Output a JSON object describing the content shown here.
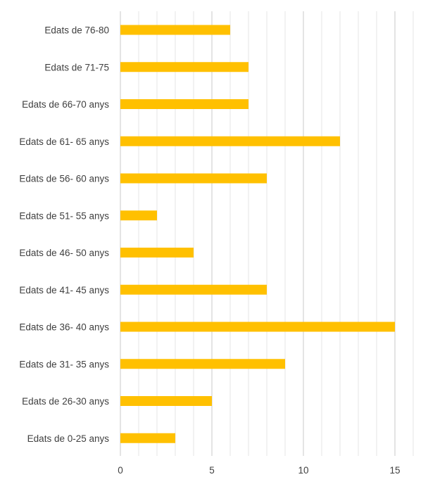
{
  "chart_data": {
    "type": "bar",
    "orientation": "horizontal",
    "categories": [
      "Edats de 76-80",
      "Edats de 71-75",
      "Edats de 66-70 anys",
      "Edats de 61- 65 anys",
      "Edats de 56- 60 anys",
      "Edats de 51- 55 anys",
      "Edats de 46- 50 anys",
      "Edats de 41- 45 anys",
      "Edats de 36- 40 anys",
      "Edats de 31- 35 anys",
      "Edats de 26-30 anys",
      "Edats de 0-25 anys"
    ],
    "values": [
      6,
      7,
      7,
      12,
      8,
      2,
      4,
      8,
      15,
      9,
      5,
      3
    ],
    "xlim": [
      0,
      16
    ],
    "x_ticks": [
      0,
      5,
      10,
      15
    ],
    "minor_grid_step": 1,
    "grid": true,
    "bar_color": "#FFC000",
    "grid_color": "#D9D9D9",
    "title": "",
    "xlabel": "",
    "ylabel": ""
  }
}
